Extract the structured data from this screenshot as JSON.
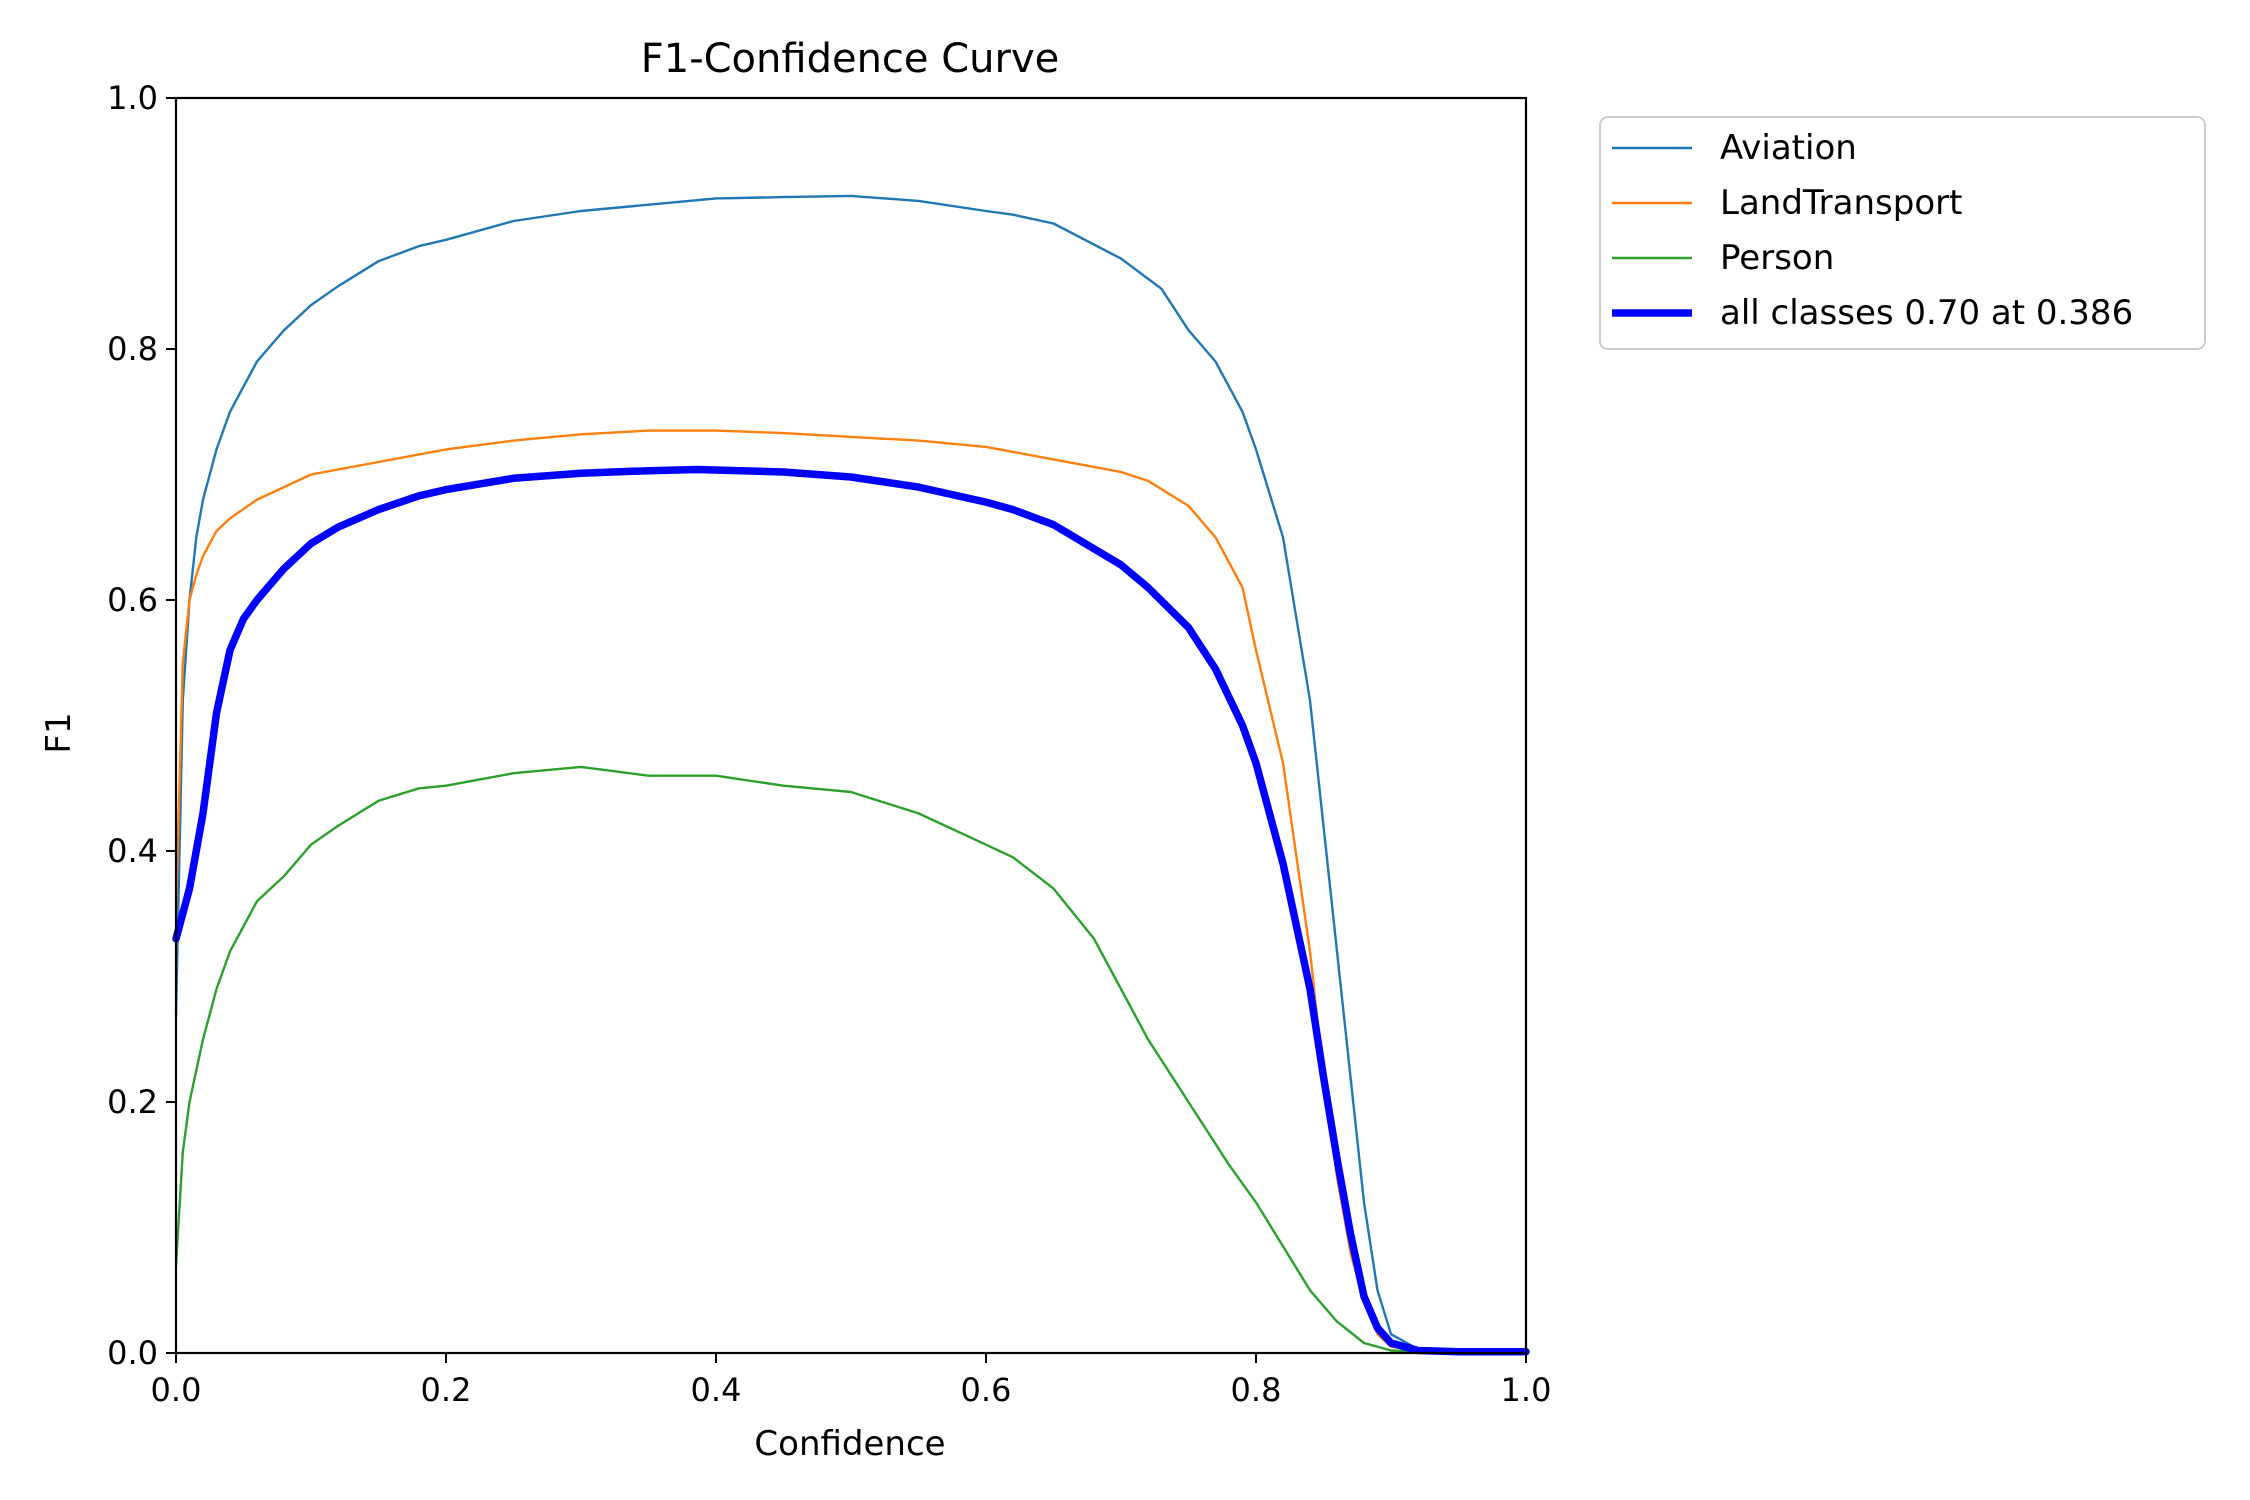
{
  "chart_data": {
    "type": "line",
    "title": "F1-Confidence Curve",
    "xlabel": "Confidence",
    "ylabel": "F1",
    "xlim": [
      0.0,
      1.0
    ],
    "ylim": [
      0.0,
      1.0
    ],
    "xticks": [
      "0.0",
      "0.2",
      "0.4",
      "0.6",
      "0.8",
      "1.0"
    ],
    "yticks": [
      "0.0",
      "0.2",
      "0.4",
      "0.6",
      "0.8",
      "1.0"
    ],
    "grid": false,
    "legend_position": "outside-top-right",
    "series": [
      {
        "name": "Aviation",
        "color": "#1f77b4",
        "x": [
          0.0,
          0.005,
          0.01,
          0.015,
          0.02,
          0.03,
          0.04,
          0.05,
          0.06,
          0.08,
          0.1,
          0.12,
          0.15,
          0.18,
          0.2,
          0.25,
          0.3,
          0.35,
          0.4,
          0.45,
          0.5,
          0.55,
          0.6,
          0.62,
          0.65,
          0.7,
          0.73,
          0.75,
          0.77,
          0.79,
          0.8,
          0.82,
          0.84,
          0.85,
          0.86,
          0.87,
          0.88,
          0.89,
          0.9,
          0.92,
          0.95,
          1.0
        ],
        "y": [
          0.27,
          0.52,
          0.6,
          0.65,
          0.68,
          0.72,
          0.75,
          0.77,
          0.79,
          0.815,
          0.835,
          0.85,
          0.87,
          0.882,
          0.887,
          0.902,
          0.91,
          0.915,
          0.92,
          0.921,
          0.922,
          0.918,
          0.91,
          0.907,
          0.9,
          0.872,
          0.848,
          0.815,
          0.79,
          0.75,
          0.72,
          0.65,
          0.52,
          0.42,
          0.32,
          0.22,
          0.12,
          0.05,
          0.015,
          0.003,
          0.001,
          0.001
        ]
      },
      {
        "name": "LandTransport",
        "color": "#ff7f0e",
        "x": [
          0.0,
          0.005,
          0.01,
          0.015,
          0.02,
          0.03,
          0.04,
          0.06,
          0.08,
          0.1,
          0.15,
          0.2,
          0.25,
          0.3,
          0.35,
          0.4,
          0.45,
          0.5,
          0.55,
          0.6,
          0.65,
          0.7,
          0.72,
          0.75,
          0.77,
          0.79,
          0.8,
          0.82,
          0.84,
          0.85,
          0.86,
          0.87,
          0.88,
          0.89,
          0.9,
          0.92,
          0.95,
          1.0
        ],
        "y": [
          0.35,
          0.55,
          0.6,
          0.62,
          0.635,
          0.655,
          0.665,
          0.68,
          0.69,
          0.7,
          0.71,
          0.72,
          0.727,
          0.732,
          0.735,
          0.735,
          0.733,
          0.73,
          0.727,
          0.722,
          0.712,
          0.702,
          0.695,
          0.675,
          0.65,
          0.61,
          0.56,
          0.47,
          0.32,
          0.22,
          0.14,
          0.08,
          0.04,
          0.015,
          0.005,
          0.002,
          0.001,
          0.001
        ]
      },
      {
        "name": "Person",
        "color": "#2ca02c",
        "x": [
          0.0,
          0.005,
          0.01,
          0.02,
          0.03,
          0.04,
          0.05,
          0.06,
          0.08,
          0.1,
          0.12,
          0.15,
          0.18,
          0.2,
          0.25,
          0.3,
          0.35,
          0.4,
          0.45,
          0.5,
          0.55,
          0.6,
          0.62,
          0.65,
          0.68,
          0.7,
          0.72,
          0.75,
          0.78,
          0.8,
          0.82,
          0.84,
          0.86,
          0.88,
          0.9,
          0.92,
          0.95,
          1.0
        ],
        "y": [
          0.07,
          0.16,
          0.2,
          0.25,
          0.29,
          0.32,
          0.34,
          0.36,
          0.38,
          0.405,
          0.42,
          0.44,
          0.45,
          0.452,
          0.462,
          0.467,
          0.46,
          0.46,
          0.452,
          0.447,
          0.43,
          0.405,
          0.395,
          0.37,
          0.33,
          0.29,
          0.25,
          0.2,
          0.15,
          0.12,
          0.085,
          0.05,
          0.025,
          0.008,
          0.002,
          0.001,
          0.0,
          0.0
        ]
      },
      {
        "name": "all classes 0.70 at 0.386",
        "color": "#0000ff",
        "x": [
          0.0,
          0.01,
          0.02,
          0.03,
          0.04,
          0.05,
          0.06,
          0.08,
          0.1,
          0.12,
          0.15,
          0.18,
          0.2,
          0.25,
          0.3,
          0.35,
          0.386,
          0.45,
          0.5,
          0.55,
          0.6,
          0.62,
          0.65,
          0.7,
          0.72,
          0.75,
          0.77,
          0.79,
          0.8,
          0.82,
          0.84,
          0.85,
          0.86,
          0.87,
          0.88,
          0.89,
          0.9,
          0.92,
          0.95,
          1.0
        ],
        "y": [
          0.33,
          0.37,
          0.43,
          0.51,
          0.56,
          0.585,
          0.6,
          0.625,
          0.645,
          0.658,
          0.672,
          0.683,
          0.688,
          0.697,
          0.701,
          0.703,
          0.704,
          0.702,
          0.698,
          0.69,
          0.678,
          0.672,
          0.66,
          0.628,
          0.61,
          0.578,
          0.545,
          0.5,
          0.47,
          0.39,
          0.29,
          0.22,
          0.155,
          0.095,
          0.045,
          0.02,
          0.008,
          0.002,
          0.001,
          0.001
        ]
      }
    ]
  }
}
